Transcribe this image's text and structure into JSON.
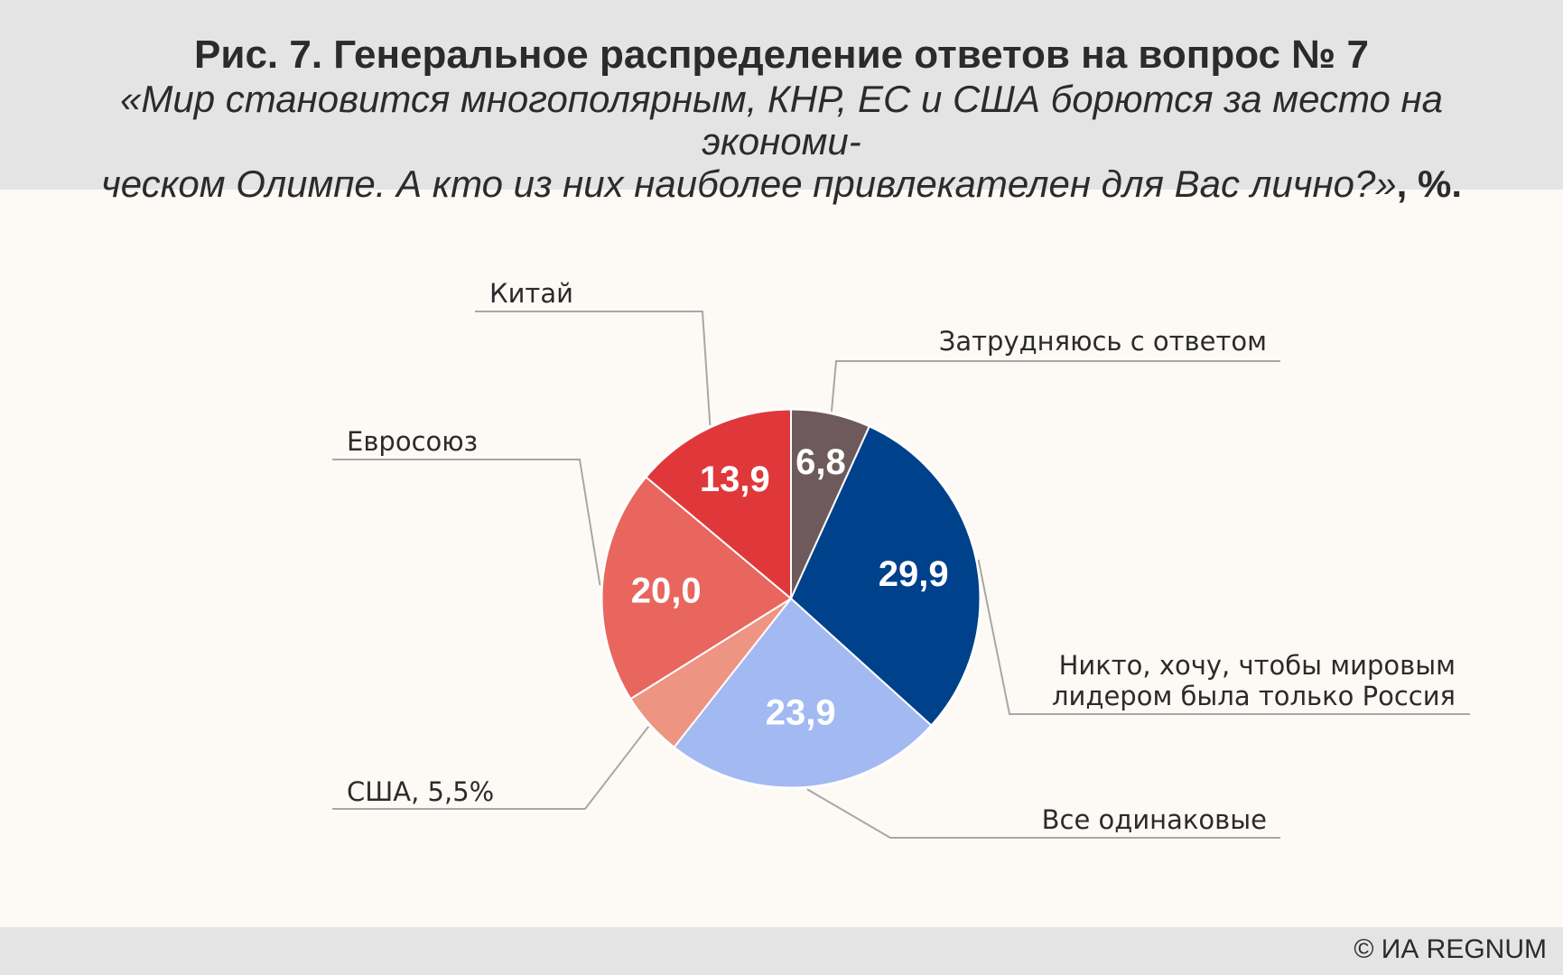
{
  "header": {
    "title": "Рис. 7. Генеральное распределение ответов на вопрос № 7",
    "subtitle_line1": "«Мир становится многополярным, КНР, ЕС и США борются за место на экономи-",
    "subtitle_line2": "ческом Олимпе. А кто из них наиболее привлекателен для Вас лично?»",
    "unit": ", %."
  },
  "footer": {
    "copyright": "© ИА REGNUM"
  },
  "chart_data": {
    "type": "pie",
    "start_angle_deg": 0,
    "direction": "clockwise",
    "slices": [
      {
        "name": "Затрудняюсь с ответом",
        "value": 6.8,
        "label": "6,8",
        "color": "#6e5a5c"
      },
      {
        "name": "Никто, хочу, чтобы мировым лидером была только Россия",
        "name_lines": [
          "Никто, хочу, чтобы мировым",
          "лидером была только Россия"
        ],
        "value": 29.9,
        "label": "29,9",
        "color": "#00418b"
      },
      {
        "name": "Все одинаковые",
        "value": 23.9,
        "label": "23,9",
        "color": "#a3b9f2"
      },
      {
        "name": "США, 5,5%",
        "value": 5.5,
        "label": "",
        "color": "#ee9483"
      },
      {
        "name": "Евросоюз",
        "value": 20.0,
        "label": "20,0",
        "color": "#e8665e"
      },
      {
        "name": "Китай",
        "value": 13.9,
        "label": "13,9",
        "color": "#e0383a"
      }
    ]
  }
}
